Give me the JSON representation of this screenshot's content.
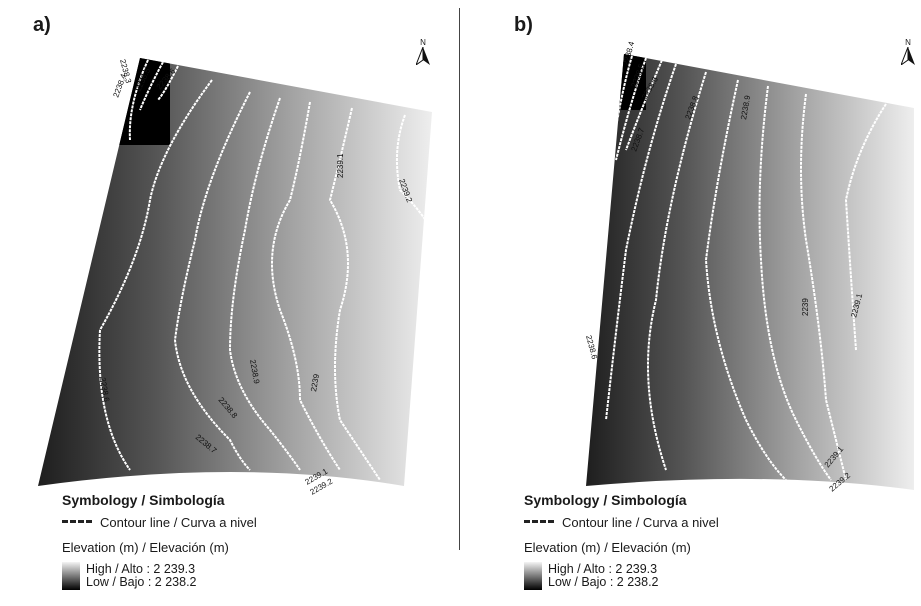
{
  "divider": "",
  "panels": [
    {
      "label": "a)",
      "north_letter": "N",
      "contour_labels": [
        "2238.3",
        "2238.4",
        "2238.5",
        "2238.6",
        "2239.1",
        "2239.2",
        "2238.6",
        "2238.9",
        "2238.8",
        "2238.7",
        "2239",
        "2239.1",
        "2239.2"
      ],
      "legend": {
        "title": "Symbology / Simbología",
        "contour": "Contour line / Curva a nivel",
        "elevation": "Elevation (m) / Elevación (m)",
        "high": "High / Alto : 2 239.3",
        "low": "Low / Bajo : 2 238.2"
      }
    },
    {
      "label": "b)",
      "north_letter": "N",
      "contour_labels": [
        "2238.4",
        "2238.5",
        "2238.6",
        "2238.7",
        "2238.8",
        "2238.9",
        "2239",
        "2239.1",
        "2238.6",
        "2239.1",
        "2239.2"
      ],
      "legend": {
        "title": "Symbology / Simbología",
        "contour": "Contour line / Curva a nivel",
        "elevation": "Elevation (m) / Elevación (m)",
        "high": "High / Alto : 2 239.3",
        "low": "Low / Bajo : 2 238.2"
      }
    }
  ],
  "colors": {
    "ramp_high": "#f4f4f4",
    "ramp_low": "#000000",
    "contour": "#ffffff"
  },
  "icons": [
    "north-arrow-icon"
  ]
}
